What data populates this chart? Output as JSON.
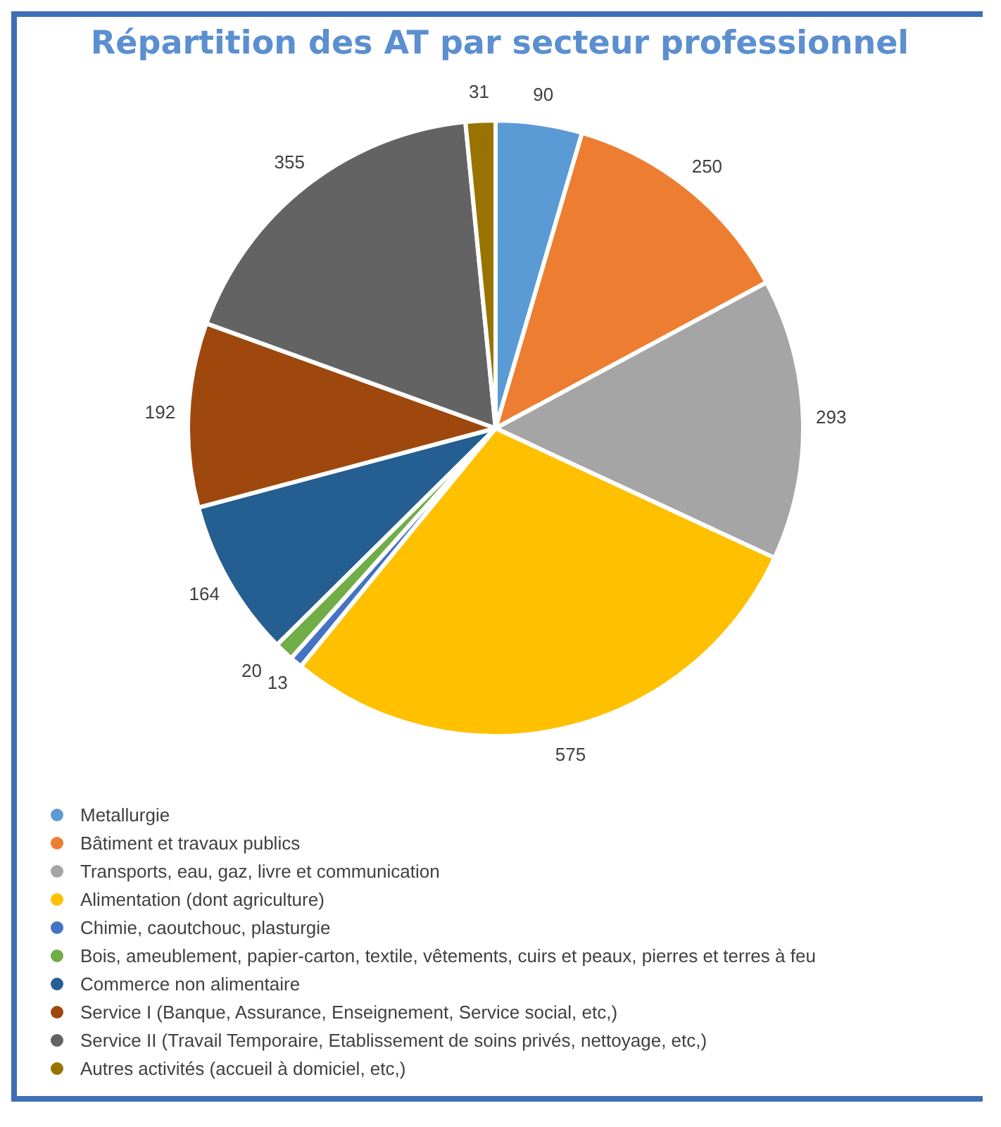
{
  "chart_data": {
    "type": "pie",
    "title": "Répartition des AT par secteur professionnel",
    "categories": [
      "Metallurgie",
      "Bâtiment et travaux publics",
      "Transports, eau, gaz, livre et communication",
      "Alimentation (dont agriculture)",
      "Chimie, caoutchouc, plasturgie",
      "Bois, ameublement, papier-carton, textile, vêtements, cuirs et peaux, pierres et terres à feu",
      "Commerce non alimentaire",
      "Service I (Banque, Assurance, Enseignement, Service social, etc,)",
      "Service II (Travail Temporaire, Etablissement de soins privés, nettoyage, etc,)",
      "Autres activités (accueil à domiciel, etc,)"
    ],
    "values": [
      90,
      250,
      293,
      575,
      13,
      20,
      164,
      192,
      355,
      31
    ],
    "colors": [
      "#5b9bd5",
      "#ed7d31",
      "#a5a5a5",
      "#ffc000",
      "#4472c4",
      "#70ad47",
      "#255e91",
      "#9e480e",
      "#636363",
      "#997300"
    ],
    "data_labels": true,
    "legend": "bottom"
  }
}
